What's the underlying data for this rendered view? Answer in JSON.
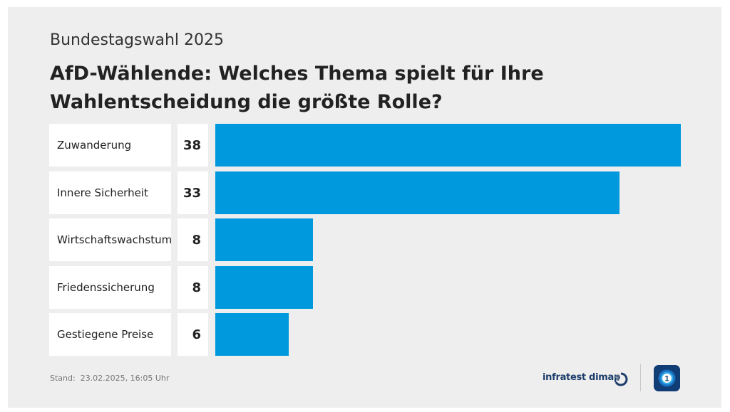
{
  "header": {
    "supertitle": "Bundestagswahl 2025",
    "title": "AfD-Wählende: Welches Thema spielt für Ihre Wahlentscheidung die größte Rolle?"
  },
  "chart_data": {
    "type": "bar",
    "orientation": "horizontal",
    "title": "AfD-Wählende: Welches Thema spielt für Ihre Wahlentscheidung die größte Rolle?",
    "categories": [
      "Zuwanderung",
      "Innere Sicherheit",
      "Wirtschaftswachstum",
      "Friedenssicherung",
      "Gestiegene Preise"
    ],
    "values": [
      38,
      33,
      8,
      8,
      6
    ],
    "xlim": [
      0,
      38
    ],
    "grid": false,
    "bar_color": "#0099dd"
  },
  "footer": {
    "stand": "Stand:  23.02.2025, 16:05 Uhr",
    "source": "infratest dimap",
    "source_icon": "infratest-dimap-icon",
    "broadcaster_icon": "tagesschau-logo-icon"
  },
  "colors": {
    "background": "#eeeeee",
    "bar": "#0099dd",
    "label_box": "#ffffff",
    "brand_text": "#1d3d6b",
    "logo_bg": "#103d75"
  }
}
